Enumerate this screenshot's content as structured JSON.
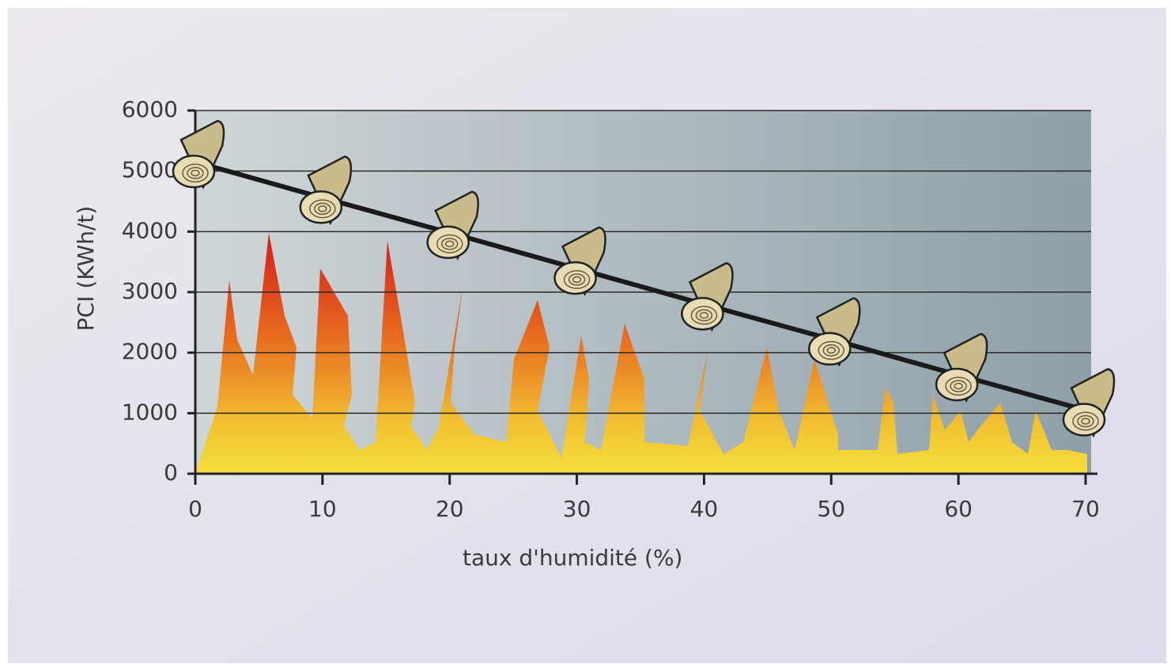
{
  "chart_data": {
    "type": "line",
    "x": [
      0,
      10,
      20,
      30,
      40,
      50,
      60,
      70
    ],
    "values": [
      5150,
      4560,
      3980,
      3390,
      2800,
      2220,
      1630,
      1050
    ],
    "color": "#1a1a1a",
    "xlim": [
      0,
      70
    ],
    "xticks": [
      0,
      10,
      20,
      30,
      40,
      50,
      60,
      70
    ],
    "ylim": [
      0,
      6000
    ],
    "yticks": [
      0,
      1000,
      2000,
      3000,
      4000,
      5000,
      6000
    ],
    "grid": true,
    "xlabel": "taux d'humidité (%)",
    "ylabel": "PCI (KWh/t)"
  }
}
